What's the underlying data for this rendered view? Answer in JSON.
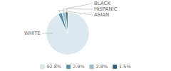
{
  "chart_data": {
    "type": "pie",
    "categories": [
      "WHITE",
      "ASIAN",
      "HISPANIC",
      "BLACK"
    ],
    "values": [
      92.8,
      2.9,
      2.8,
      1.5
    ],
    "value_labels": [
      "92.8%",
      "2.9%",
      "2.8%",
      "1.5%"
    ],
    "colors": [
      "#dce8f0",
      "#5b8fa8",
      "#9abcce",
      "#2d5a73"
    ],
    "legend": "bottom"
  }
}
